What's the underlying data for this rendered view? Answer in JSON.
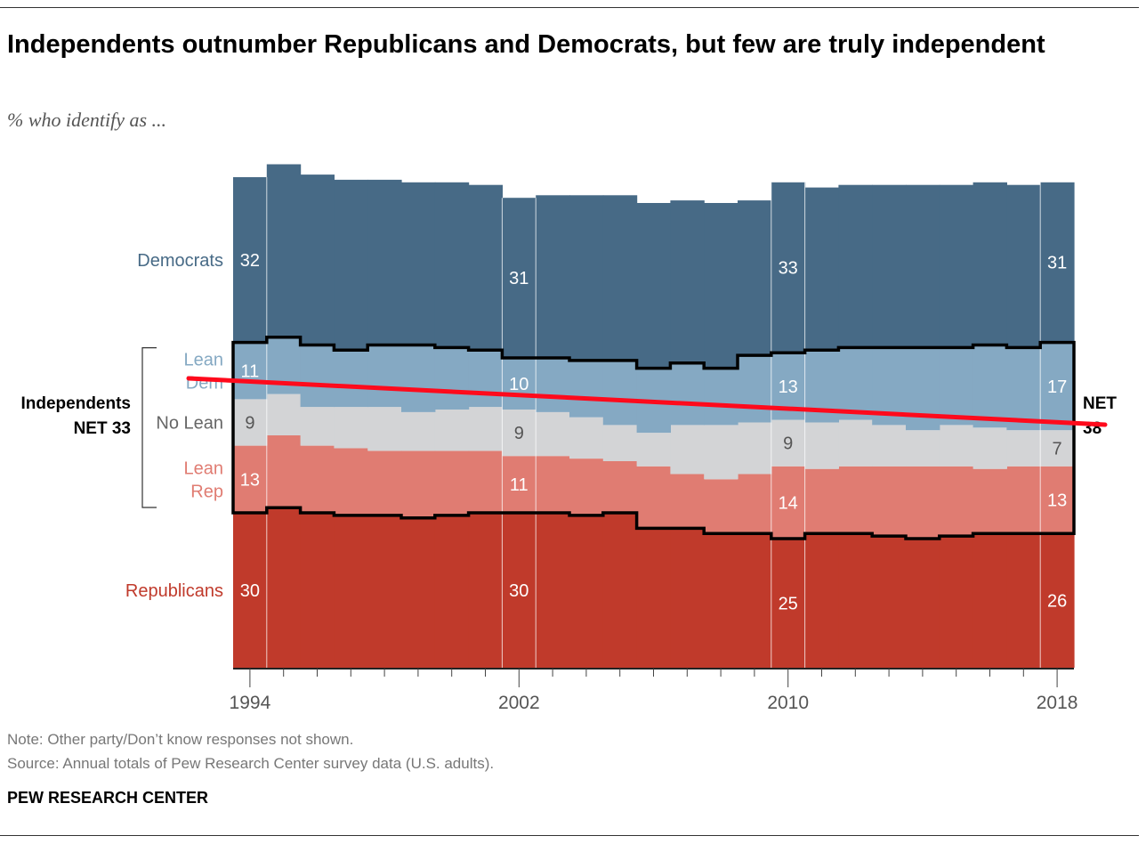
{
  "title": "Independents outnumber Republicans and Democrats, but few are truly independent",
  "subtitle": "% who identify as ...",
  "note": "Note: Other party/Don’t know responses not shown.",
  "source": "Source: Annual totals of Pew Research Center survey data (U.S. adults).",
  "org": "PEW RESEARCH CENTER",
  "colors": {
    "democrats": "#476a86",
    "lean_dem": "#85a9c3",
    "no_lean": "#d3d4d6",
    "lean_rep": "#e07c72",
    "republicans": "#c03a2b",
    "trend": "#ff0a1c"
  },
  "chart_data": {
    "type": "area",
    "x": [
      1994,
      1995,
      1996,
      1997,
      1998,
      1999,
      2000,
      2001,
      2002,
      2003,
      2004,
      2005,
      2006,
      2007,
      2008,
      2009,
      2010,
      2011,
      2012,
      2013,
      2014,
      2015,
      2016,
      2017,
      2018
    ],
    "x_ticks": [
      1994,
      2002,
      2010,
      2018
    ],
    "series": [
      {
        "name": "Republicans",
        "values": [
          30,
          31,
          30,
          29.5,
          29.5,
          29,
          29.5,
          30,
          30,
          30,
          29.5,
          30,
          27,
          27,
          26,
          26,
          25,
          26,
          26,
          25.5,
          25,
          25.5,
          26,
          26,
          26
        ]
      },
      {
        "name": "Lean Rep",
        "values": [
          13,
          14,
          13,
          13,
          12.5,
          13,
          12.5,
          12,
          11,
          11,
          11,
          10,
          12,
          10.5,
          10.5,
          11.5,
          14,
          12.5,
          13,
          13.5,
          14,
          13.5,
          12.5,
          13,
          13
        ]
      },
      {
        "name": "No Lean",
        "values": [
          9,
          8,
          7.5,
          8,
          8.5,
          7.5,
          8,
          8.5,
          9,
          8.5,
          8,
          7,
          6.5,
          9.5,
          10.5,
          10,
          9,
          9,
          9,
          8,
          7,
          8,
          8,
          7,
          7
        ]
      },
      {
        "name": "Lean Dem",
        "values": [
          11,
          11,
          12,
          11,
          12,
          13,
          12,
          11,
          10,
          10.5,
          11,
          12.5,
          12.5,
          12,
          11,
          13,
          13,
          14,
          14,
          15,
          16,
          15,
          16,
          16,
          17
        ]
      },
      {
        "name": "Democrats",
        "values": [
          32,
          33.5,
          33,
          33,
          32,
          31.5,
          32,
          32,
          31,
          31.5,
          32,
          32,
          32,
          31.5,
          32,
          30,
          33,
          31.5,
          31.5,
          31.5,
          31.5,
          31.5,
          31.5,
          31.5,
          31
        ]
      }
    ],
    "data_labels": {
      "years": [
        1994,
        2002,
        2010,
        2018
      ],
      "Democrats": [
        32,
        31,
        33,
        31
      ],
      "Lean Dem": [
        11,
        10,
        13,
        17
      ],
      "No Lean": [
        9,
        9,
        9,
        7
      ],
      "Lean Rep": [
        13,
        11,
        14,
        13
      ],
      "Republicans": [
        30,
        30,
        25,
        26
      ]
    },
    "independents_net_start": 33,
    "independents_net_end": 38,
    "band_labels": {
      "Democrats": "Democrats",
      "Lean Dem": "Lean Dem",
      "No Lean": "No Lean",
      "Lean Rep": "Lean Rep",
      "Republicans": "Republicans"
    },
    "independents_label": "Independents",
    "net_label": "NET",
    "ylim": [
      0,
      100
    ],
    "trend_line": {
      "from": 33,
      "to": 38
    }
  }
}
